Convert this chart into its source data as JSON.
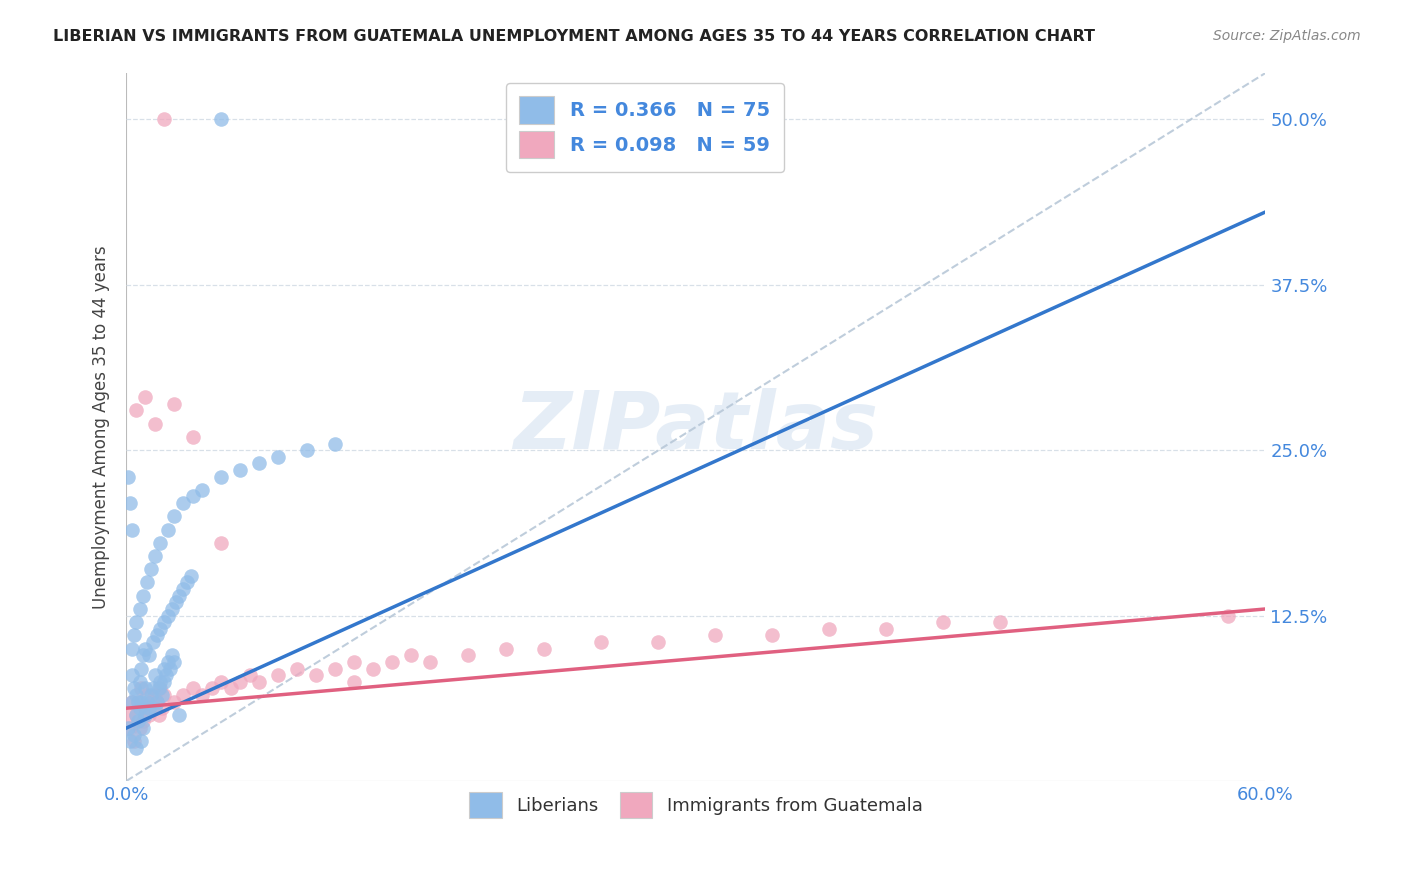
{
  "title": "LIBERIAN VS IMMIGRANTS FROM GUATEMALA UNEMPLOYMENT AMONG AGES 35 TO 44 YEARS CORRELATION CHART",
  "source": "Source: ZipAtlas.com",
  "ylabel": "Unemployment Among Ages 35 to 44 years",
  "watermark": "ZIPatlas",
  "xlim": [
    0.0,
    0.6
  ],
  "ylim": [
    0.0,
    0.535
  ],
  "yticks": [
    0.0,
    0.125,
    0.25,
    0.375,
    0.5
  ],
  "ytick_labels": [
    "",
    "12.5%",
    "25.0%",
    "37.5%",
    "50.0%"
  ],
  "xtick_positions": [
    0.0,
    0.6
  ],
  "xtick_labels": [
    "0.0%",
    "60.0%"
  ],
  "liberian_color": "#90bce8",
  "guatemala_color": "#f0a8be",
  "liberian_line_color": "#3377cc",
  "guatemala_line_color": "#e06080",
  "diagonal_color": "#b8c8d8",
  "grid_color": "#d8e0e8",
  "R_liberian": 0.366,
  "N_liberian": 75,
  "R_guatemala": 0.098,
  "N_guatemala": 59,
  "tick_label_color": "#4488dd",
  "title_color": "#222222",
  "source_color": "#888888",
  "ylabel_color": "#444444",
  "lib_x": [
    0.001,
    0.002,
    0.003,
    0.004,
    0.005,
    0.005,
    0.006,
    0.007,
    0.008,
    0.008,
    0.009,
    0.01,
    0.01,
    0.011,
    0.012,
    0.013,
    0.014,
    0.015,
    0.015,
    0.016,
    0.017,
    0.018,
    0.019,
    0.02,
    0.02,
    0.021,
    0.022,
    0.023,
    0.024,
    0.025,
    0.003,
    0.004,
    0.005,
    0.006,
    0.007,
    0.008,
    0.009,
    0.01,
    0.012,
    0.014,
    0.016,
    0.018,
    0.02,
    0.022,
    0.024,
    0.026,
    0.028,
    0.03,
    0.032,
    0.034,
    0.003,
    0.004,
    0.005,
    0.007,
    0.009,
    0.011,
    0.013,
    0.015,
    0.018,
    0.022,
    0.025,
    0.03,
    0.035,
    0.04,
    0.05,
    0.06,
    0.07,
    0.08,
    0.095,
    0.11,
    0.001,
    0.002,
    0.003,
    0.028,
    0.05
  ],
  "lib_y": [
    0.04,
    0.03,
    0.06,
    0.035,
    0.05,
    0.025,
    0.045,
    0.055,
    0.03,
    0.06,
    0.04,
    0.05,
    0.07,
    0.06,
    0.055,
    0.065,
    0.07,
    0.055,
    0.08,
    0.06,
    0.07,
    0.075,
    0.065,
    0.075,
    0.085,
    0.08,
    0.09,
    0.085,
    0.095,
    0.09,
    0.08,
    0.07,
    0.065,
    0.06,
    0.075,
    0.085,
    0.095,
    0.1,
    0.095,
    0.105,
    0.11,
    0.115,
    0.12,
    0.125,
    0.13,
    0.135,
    0.14,
    0.145,
    0.15,
    0.155,
    0.1,
    0.11,
    0.12,
    0.13,
    0.14,
    0.15,
    0.16,
    0.17,
    0.18,
    0.19,
    0.2,
    0.21,
    0.215,
    0.22,
    0.23,
    0.235,
    0.24,
    0.245,
    0.25,
    0.255,
    0.23,
    0.21,
    0.19,
    0.05,
    0.5
  ],
  "guat_x": [
    0.001,
    0.002,
    0.003,
    0.004,
    0.005,
    0.006,
    0.007,
    0.008,
    0.009,
    0.01,
    0.011,
    0.012,
    0.013,
    0.014,
    0.015,
    0.016,
    0.017,
    0.018,
    0.019,
    0.02,
    0.025,
    0.03,
    0.035,
    0.04,
    0.045,
    0.05,
    0.055,
    0.06,
    0.065,
    0.07,
    0.08,
    0.09,
    0.1,
    0.11,
    0.12,
    0.13,
    0.14,
    0.15,
    0.16,
    0.18,
    0.2,
    0.22,
    0.25,
    0.28,
    0.31,
    0.34,
    0.37,
    0.4,
    0.43,
    0.46,
    0.005,
    0.01,
    0.015,
    0.02,
    0.025,
    0.035,
    0.05,
    0.58,
    0.12
  ],
  "guat_y": [
    0.05,
    0.04,
    0.06,
    0.03,
    0.05,
    0.06,
    0.04,
    0.07,
    0.045,
    0.055,
    0.065,
    0.05,
    0.06,
    0.055,
    0.065,
    0.06,
    0.05,
    0.07,
    0.055,
    0.065,
    0.06,
    0.065,
    0.07,
    0.065,
    0.07,
    0.075,
    0.07,
    0.075,
    0.08,
    0.075,
    0.08,
    0.085,
    0.08,
    0.085,
    0.09,
    0.085,
    0.09,
    0.095,
    0.09,
    0.095,
    0.1,
    0.1,
    0.105,
    0.105,
    0.11,
    0.11,
    0.115,
    0.115,
    0.12,
    0.12,
    0.28,
    0.29,
    0.27,
    0.5,
    0.285,
    0.26,
    0.18,
    0.125,
    0.075
  ]
}
